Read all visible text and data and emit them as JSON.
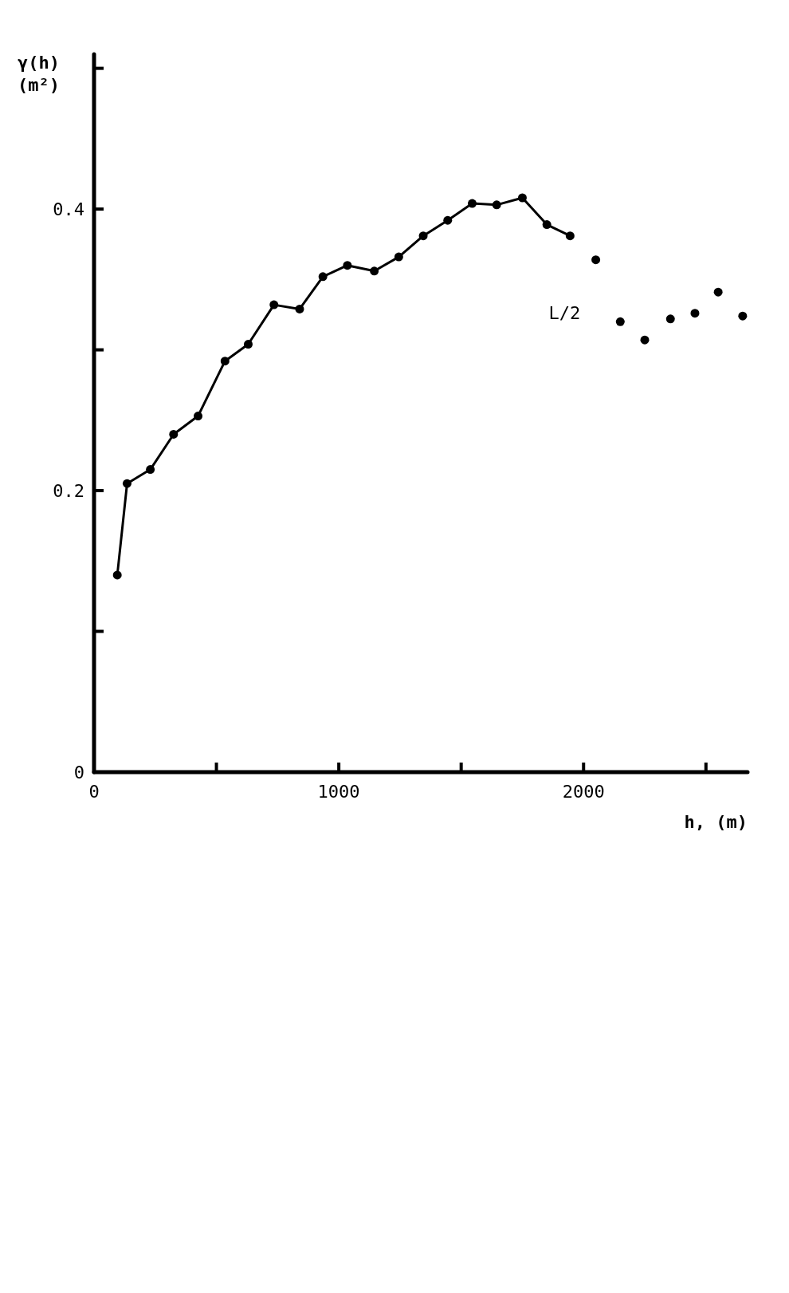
{
  "chart_data": {
    "type": "line",
    "xlabel": "h, (m)",
    "ylabel": "γ(h) (m²)",
    "xlim": [
      0,
      2670
    ],
    "xticks": [
      0,
      {
        "value": 500,
        "label": null
      },
      1000,
      {
        "value": 1500,
        "label": null
      },
      2000,
      {
        "value": 2500,
        "label": null
      }
    ],
    "ylim": [
      0,
      0.51
    ],
    "yticks": [
      0,
      {
        "value": 0.1,
        "label": null
      },
      0.2,
      {
        "value": 0.3,
        "label": null
      },
      0.4,
      {
        "value": 0.5,
        "label": null
      }
    ],
    "grid": false,
    "marker": "circle",
    "line_style": "solid",
    "series": [
      {
        "color": "#000000",
        "x": [
          95,
          135,
          230,
          325,
          425,
          535,
          630,
          735,
          840,
          935,
          1035,
          1145,
          1245,
          1345,
          1445,
          1545,
          1645,
          1750,
          1850,
          1945
        ],
        "values": [
          0.14,
          0.205,
          0.215,
          0.24,
          0.253,
          0.292,
          0.304,
          0.332,
          0.329,
          0.352,
          0.36,
          0.356,
          0.366,
          0.381,
          0.392,
          0.404,
          0.403,
          0.408,
          0.389,
          0.381
        ]
      },
      {
        "type": "scatter",
        "color": "#000000",
        "x": [
          2050,
          2150,
          2250,
          2355,
          2455,
          2550,
          2650
        ],
        "values": [
          0.364,
          0.32,
          0.307,
          0.322,
          0.326,
          0.341,
          0.324
        ]
      }
    ],
    "annotations": [
      "L/2"
    ]
  }
}
